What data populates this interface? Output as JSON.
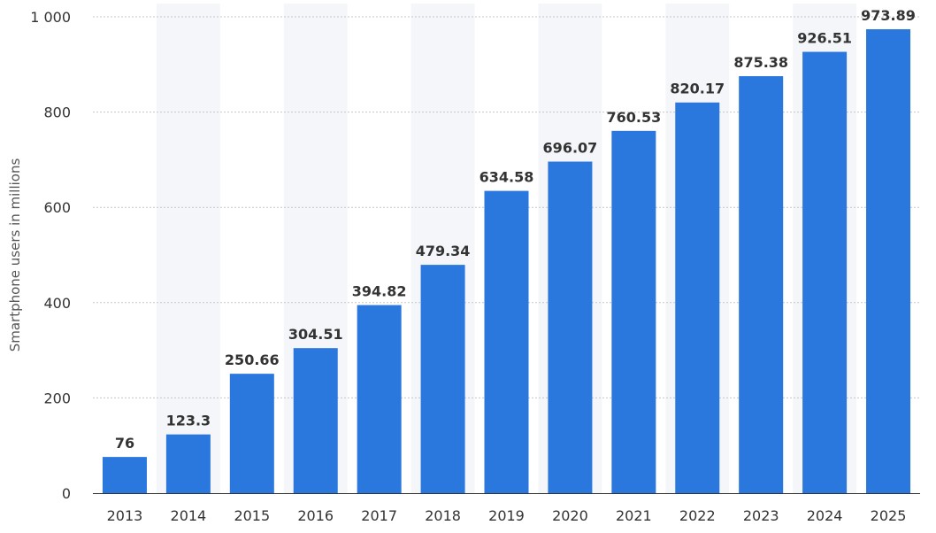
{
  "chart_data": {
    "type": "bar",
    "categories": [
      "2013",
      "2014",
      "2015",
      "2016",
      "2017",
      "2018",
      "2019",
      "2020",
      "2021",
      "2022",
      "2023",
      "2024",
      "2025"
    ],
    "values": [
      76,
      123.3,
      250.66,
      304.51,
      394.82,
      479.34,
      634.58,
      696.07,
      760.53,
      820.17,
      875.38,
      926.51,
      973.89
    ],
    "data_labels": [
      "76",
      "123.3",
      "250.66",
      "304.51",
      "394.82",
      "479.34",
      "634.58",
      "696.07",
      "760.53",
      "820.17",
      "875.38",
      "926.51",
      "973.89"
    ],
    "yticks": [
      0,
      200,
      400,
      600,
      800,
      1000
    ],
    "ytick_labels": [
      "0",
      "200",
      "400",
      "600",
      "800",
      "1 000"
    ],
    "ylim": [
      0,
      1000
    ],
    "ylabel": "Smartphone users in millions",
    "xlabel": "",
    "title": "",
    "grid": true,
    "colors": {
      "bar": "#2a77de",
      "band": "#f5f6f9",
      "grid": "#c6c6c6",
      "axis": "#333333"
    }
  }
}
